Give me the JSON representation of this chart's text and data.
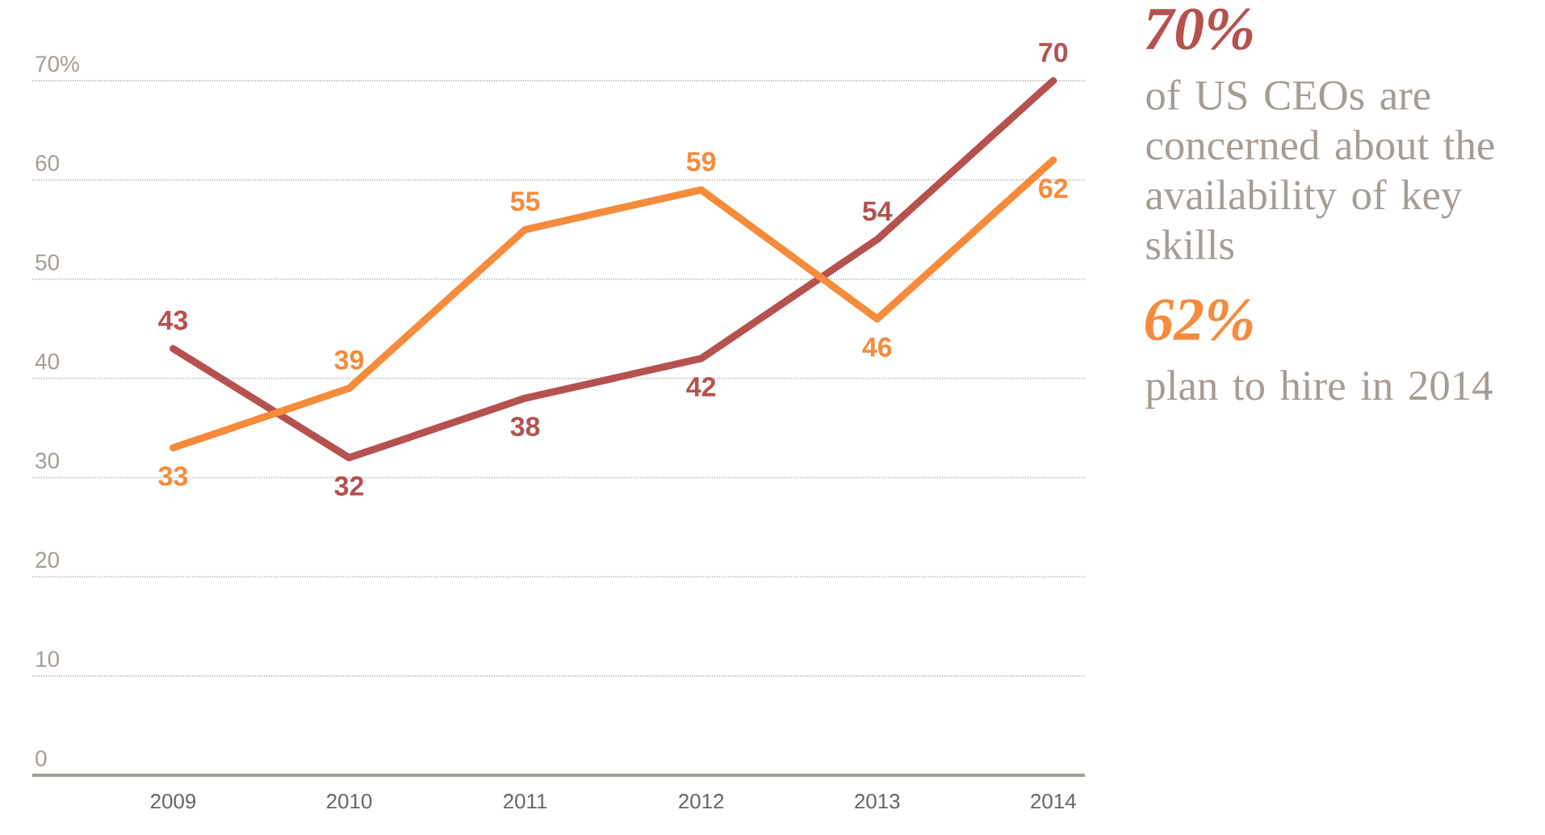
{
  "chart_data": {
    "type": "line",
    "categories": [
      "2009",
      "2010",
      "2011",
      "2012",
      "2013",
      "2014"
    ],
    "series": [
      {
        "color": "#b5524f",
        "values": [
          43,
          32,
          38,
          42,
          54,
          70
        ]
      },
      {
        "color": "#f58b3b",
        "values": [
          33,
          39,
          55,
          59,
          46,
          62
        ]
      }
    ],
    "ylim": [
      0,
      70
    ],
    "yticks": [
      0,
      10,
      20,
      30,
      40,
      50,
      60,
      {
        "value": 70,
        "label": "70%"
      }
    ],
    "grid": "y",
    "data_labels": true,
    "annotations": [
      "70%",
      "of US CEOs are concerned about the availability of key skills",
      "62%",
      "plan to hire in 2014"
    ]
  }
}
